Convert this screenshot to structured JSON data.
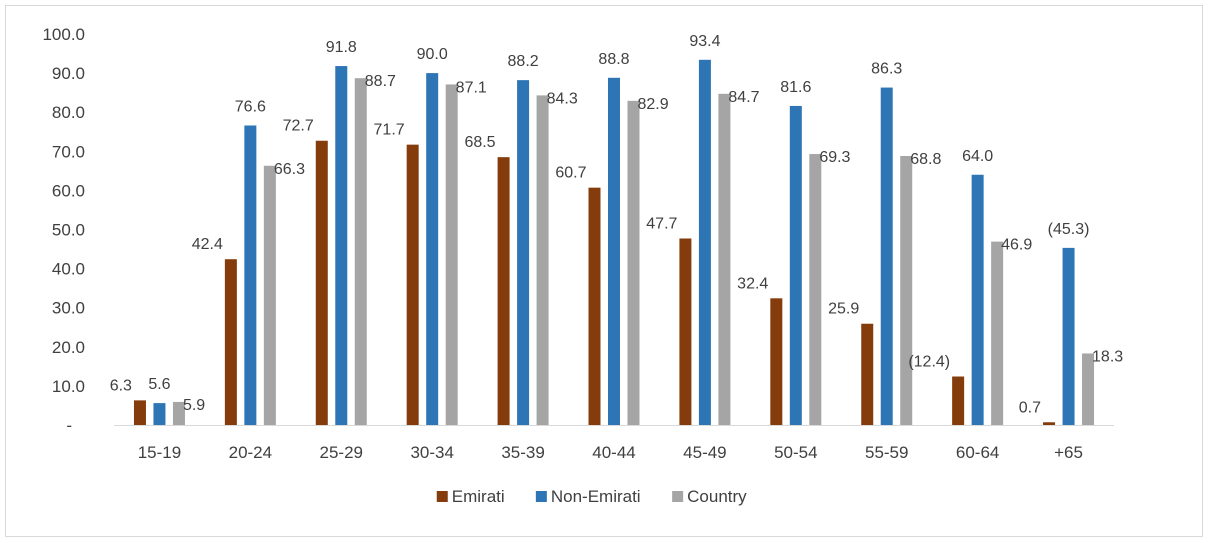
{
  "chart_data": {
    "type": "bar",
    "title": "",
    "xlabel": "",
    "ylabel": "",
    "ylim": [
      0,
      100
    ],
    "yticks": [
      0,
      10,
      20,
      30,
      40,
      50,
      60,
      70,
      80,
      90,
      100
    ],
    "ytick_labels": [
      "-",
      "10.0",
      "20.0",
      "30.0",
      "40.0",
      "50.0",
      "60.0",
      "70.0",
      "80.0",
      "90.0",
      "100.0"
    ],
    "grid": false,
    "legend_position": "bottom",
    "categories": [
      "15-19",
      "20-24",
      "25-29",
      "30-34",
      "35-39",
      "40-44",
      "45-49",
      "50-54",
      "55-59",
      "60-64",
      "+65"
    ],
    "series": [
      {
        "name": "Emirati",
        "color": "#843c0c",
        "values": [
          6.3,
          42.4,
          72.7,
          71.7,
          68.5,
          60.7,
          47.7,
          32.4,
          25.9,
          12.4,
          0.7
        ],
        "labels": [
          "6.3",
          "42.4",
          "72.7",
          "71.7",
          "68.5",
          "60.7",
          "47.7",
          "32.4",
          "25.9",
          "(12.4)",
          "0.7"
        ]
      },
      {
        "name": "Non-Emirati",
        "color": "#2e75b6",
        "values": [
          5.6,
          76.6,
          91.8,
          90.0,
          88.2,
          88.8,
          93.4,
          81.6,
          86.3,
          64.0,
          45.3
        ],
        "labels": [
          "5.6",
          "76.6",
          "91.8",
          "90.0",
          "88.2",
          "88.8",
          "93.4",
          "81.6",
          "86.3",
          "64.0",
          "(45.3)"
        ]
      },
      {
        "name": "Country",
        "color": "#a5a5a5",
        "values": [
          5.9,
          66.3,
          88.7,
          87.1,
          84.3,
          82.9,
          84.7,
          69.3,
          68.8,
          46.9,
          18.3
        ],
        "labels": [
          "5.9",
          "66.3",
          "88.7",
          "87.1",
          "84.3",
          "82.9",
          "84.7",
          "69.3",
          "68.8",
          "46.9",
          "18.3"
        ]
      }
    ]
  }
}
